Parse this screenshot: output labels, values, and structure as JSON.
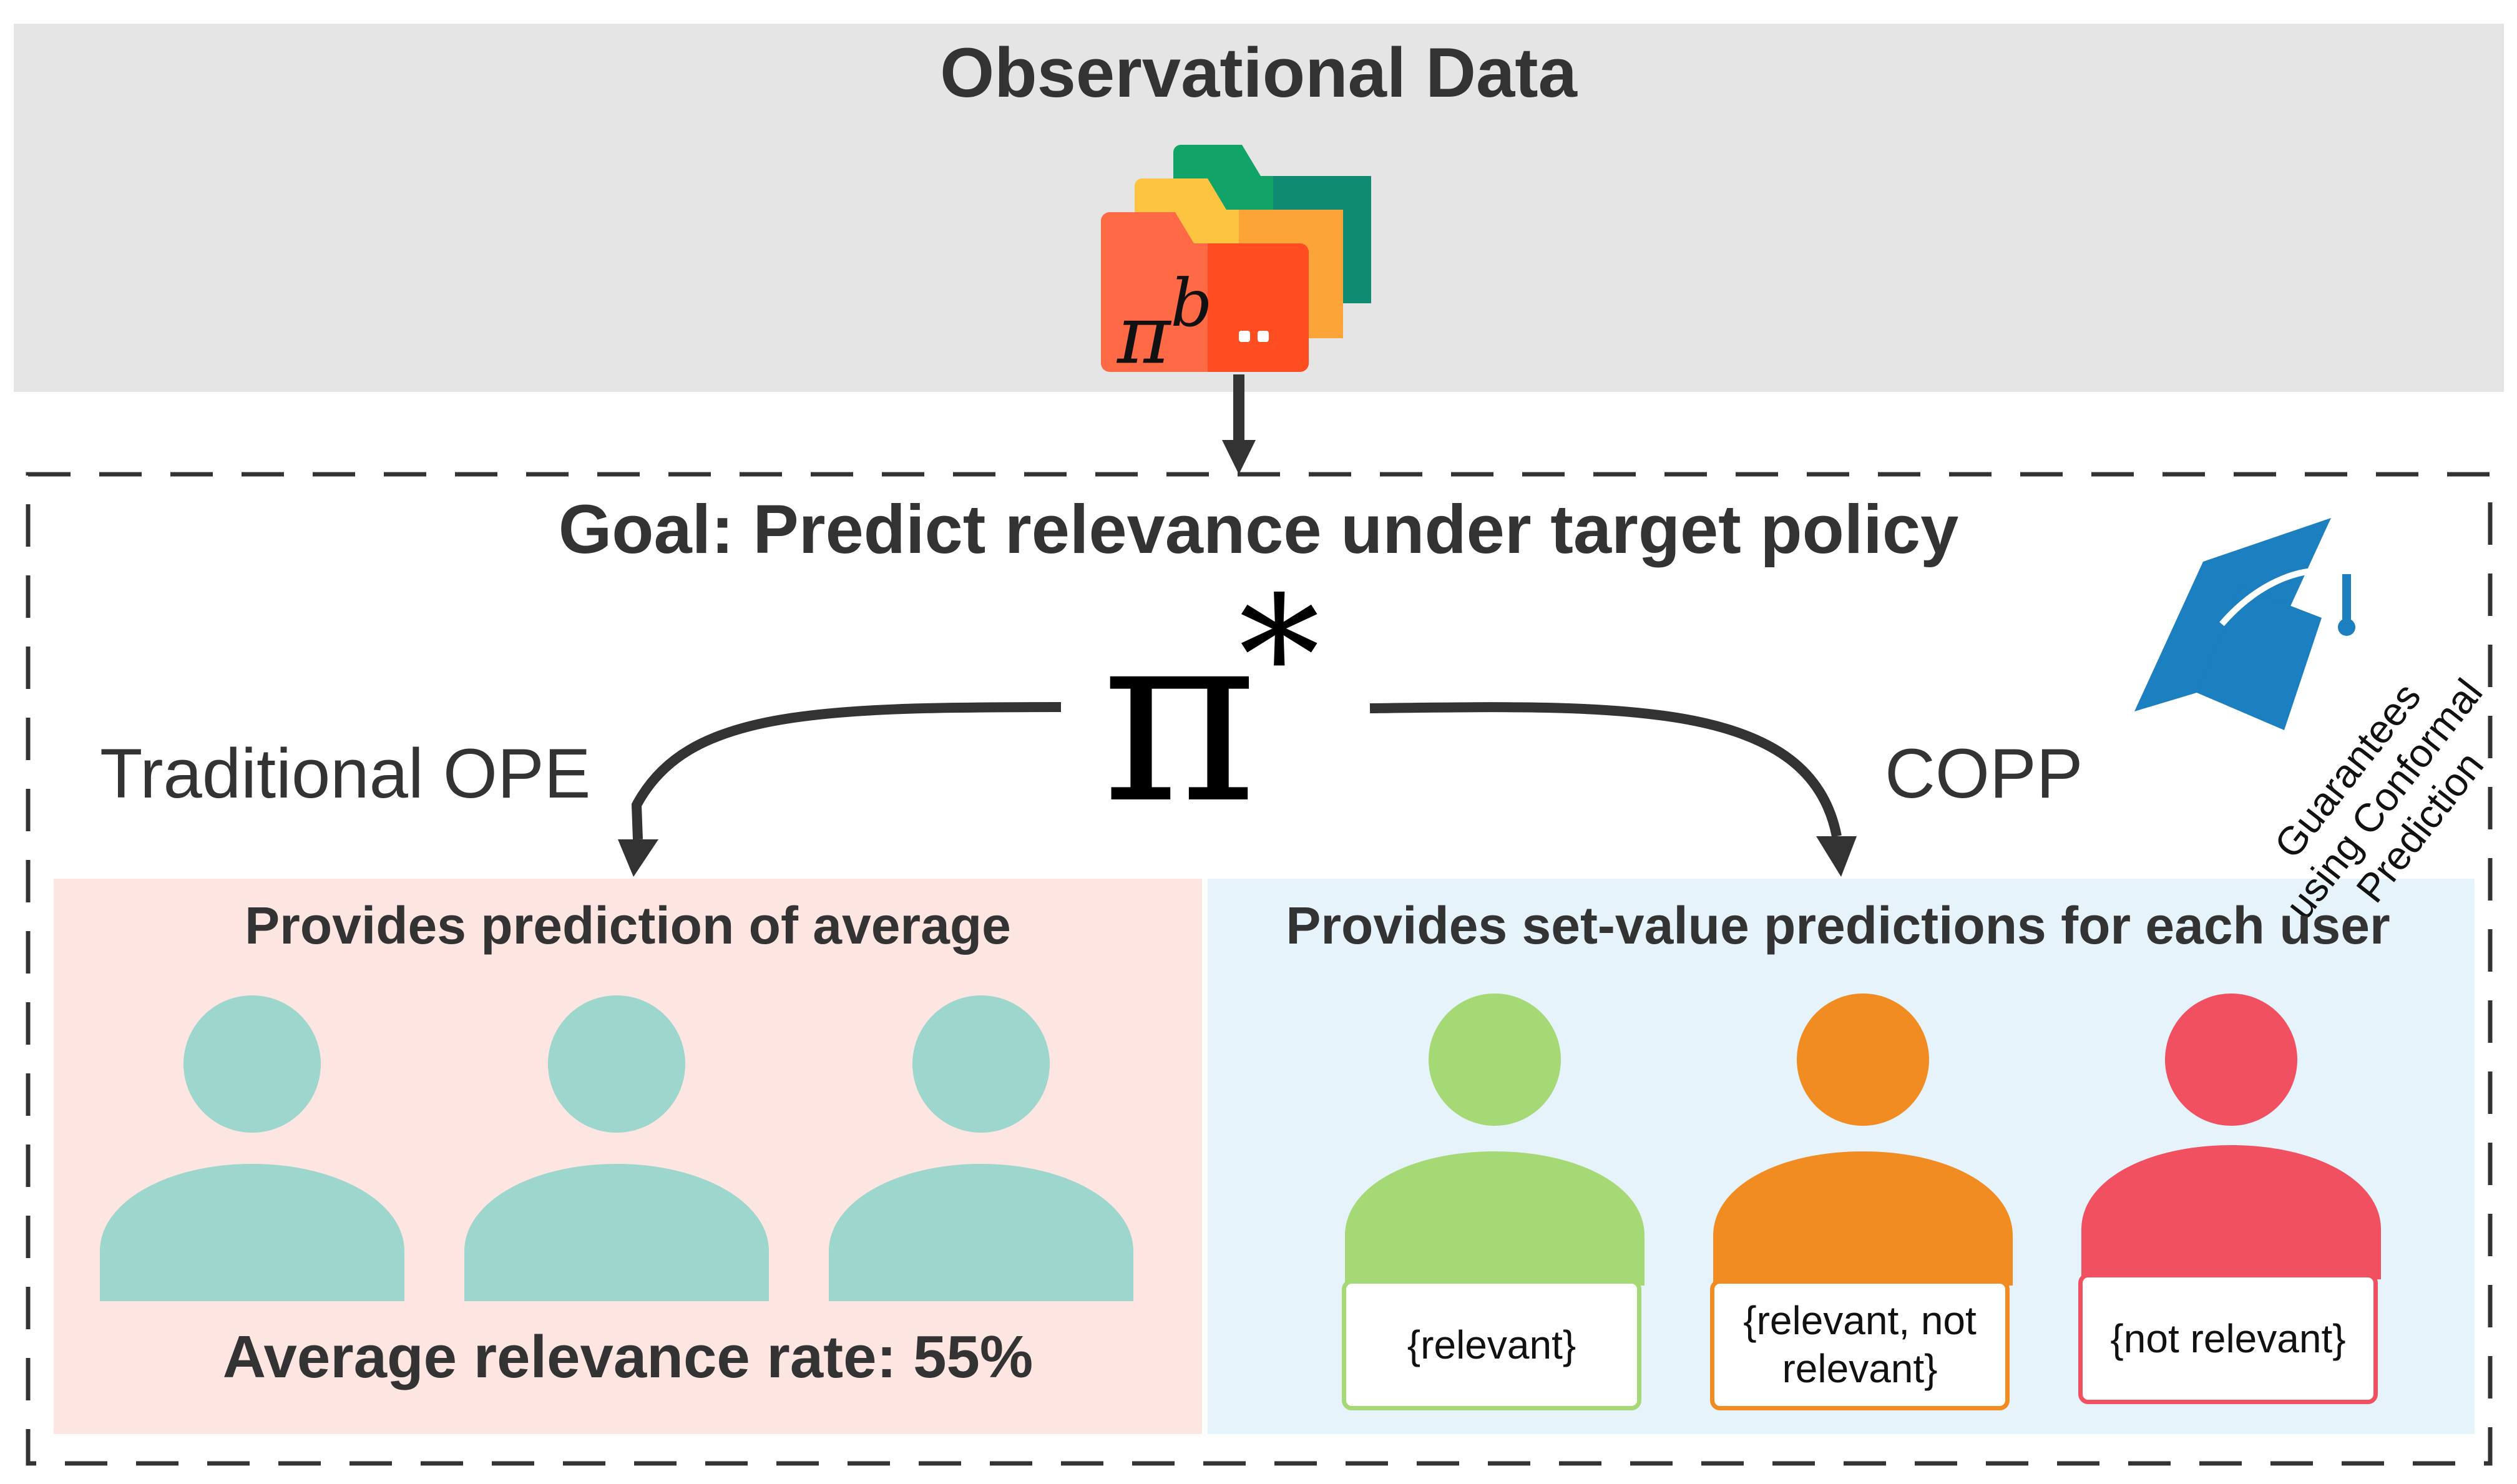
{
  "observational_data": {
    "title": "Observational Data",
    "behavior_policy_symbol": "π",
    "behavior_policy_superscript": "b"
  },
  "goal": {
    "title": "Goal: Predict relevance under target policy",
    "target_policy_symbol": "π",
    "target_policy_superscript": "*"
  },
  "branches": {
    "left_label": "Traditional OPE",
    "right_label": "COPP",
    "guarantee_lines": [
      "Guarantees",
      "using Conformal",
      "Prediction"
    ]
  },
  "left_panel": {
    "title": "Provides prediction of average",
    "summary": "Average relevance rate: 55%",
    "user_color": "#9dd6cc",
    "background": "#fde6e2"
  },
  "right_panel": {
    "title": "Provides set-value predictions for each user",
    "background": "#e6f3fb",
    "users": [
      {
        "prediction": "{relevant}",
        "color": "#a5d975"
      },
      {
        "prediction": "{relevant, not relevant}",
        "color": "#f08c22"
      },
      {
        "prediction": "{not relevant}",
        "color": "#f05060"
      }
    ]
  },
  "colors": {
    "banner": "#e5e5e5",
    "cap": "#1b7fc0",
    "folder_green": "#12a368",
    "folder_yellow": "#fcc440",
    "folder_orange": "#fd6a45",
    "arrow": "#333333"
  }
}
